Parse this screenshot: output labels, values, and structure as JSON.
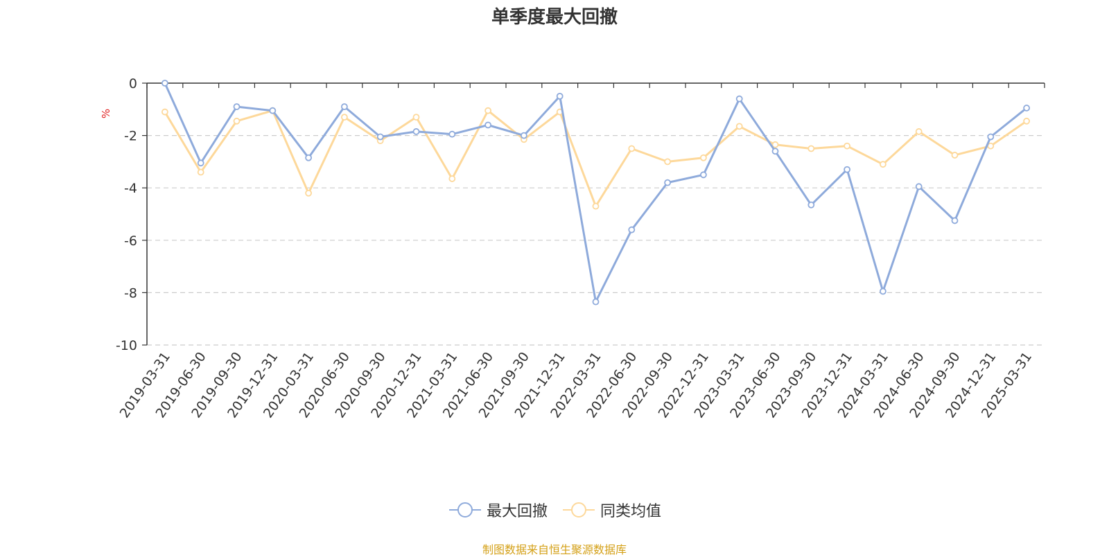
{
  "chart_data": {
    "type": "line",
    "title": "单季度最大回撤",
    "ylabel": "%",
    "xlabel": "",
    "ylim": [
      -10,
      0
    ],
    "yticks": [
      0,
      -2,
      -4,
      -6,
      -8,
      -10
    ],
    "grid": true,
    "legend_position": "bottom",
    "categories": [
      "2019-03-31",
      "2019-06-30",
      "2019-09-30",
      "2019-12-31",
      "2020-03-31",
      "2020-06-30",
      "2020-09-30",
      "2020-12-31",
      "2021-03-31",
      "2021-06-30",
      "2021-09-30",
      "2021-12-31",
      "2022-03-31",
      "2022-06-30",
      "2022-09-30",
      "2022-12-31",
      "2023-03-31",
      "2023-06-30",
      "2023-09-30",
      "2023-12-31",
      "2024-03-31",
      "2024-06-30",
      "2024-09-30",
      "2024-12-31",
      "2025-03-31"
    ],
    "series": [
      {
        "name": "最大回撤",
        "color": "#8eaadb",
        "values": [
          0,
          -3.05,
          -0.9,
          -1.05,
          -2.85,
          -0.9,
          -2.05,
          -1.85,
          -1.95,
          -1.6,
          -2.0,
          -0.5,
          -8.35,
          -5.6,
          -3.8,
          -3.5,
          -0.6,
          -2.6,
          -4.65,
          -3.3,
          -7.95,
          -3.95,
          -5.25,
          -2.05,
          -0.95
        ]
      },
      {
        "name": "同类均值",
        "color": "#fdd89a",
        "values": [
          -1.1,
          -3.4,
          -1.45,
          -1.05,
          -4.2,
          -1.3,
          -2.2,
          -1.3,
          -3.65,
          -1.05,
          -2.15,
          -1.1,
          -4.7,
          -2.5,
          -3.0,
          -2.85,
          -1.65,
          -2.35,
          -2.5,
          -2.4,
          -3.1,
          -1.85,
          -2.75,
          -2.4,
          -1.45
        ]
      }
    ]
  },
  "source_text": "制图数据来自恒生聚源数据库"
}
